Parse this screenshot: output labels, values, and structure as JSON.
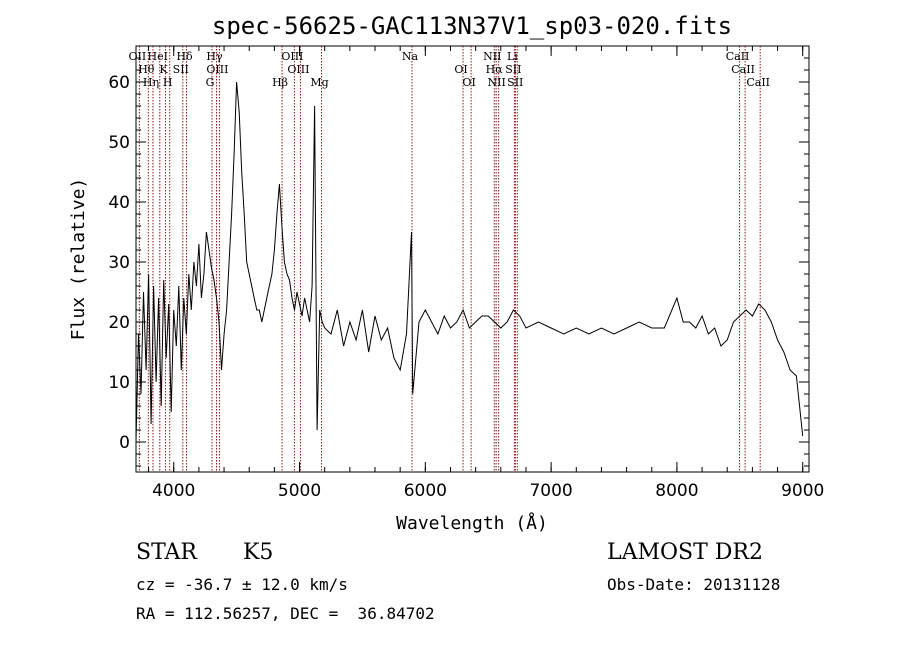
{
  "chart_data": {
    "type": "line",
    "title": "spec-56625-GAC113N37V1_sp03-020.fits",
    "xlabel": "Wavelength (Å)",
    "ylabel": "Flux (relative)",
    "xlim": [
      3700,
      9050
    ],
    "ylim": [
      -5,
      66
    ],
    "xticks": [
      4000,
      5000,
      6000,
      7000,
      8000,
      9000
    ],
    "yticks": [
      0,
      10,
      20,
      30,
      40,
      50,
      60
    ],
    "line_color": "#000000",
    "marker_color": "#8b1a1a",
    "series": [
      {
        "x": [
          3700,
          3720,
          3740,
          3760,
          3780,
          3800,
          3820,
          3840,
          3860,
          3880,
          3900,
          3920,
          3940,
          3960,
          3980,
          4000,
          4020,
          4040,
          4060,
          4080,
          4100,
          4120,
          4140,
          4160,
          4180,
          4200,
          4220,
          4240,
          4260,
          4280,
          4300,
          4320,
          4340,
          4360,
          4380,
          4400,
          4420,
          4440,
          4460,
          4480,
          4500,
          4520,
          4540,
          4560,
          4580,
          4600,
          4620,
          4640,
          4660,
          4680,
          4700,
          4720,
          4740,
          4760,
          4780,
          4800,
          4820,
          4840,
          4860,
          4880,
          4900,
          4920,
          4940,
          4960,
          4980,
          5000,
          5020,
          5040,
          5060,
          5080,
          5100,
          5120,
          5140,
          5160,
          5180,
          5200,
          5250,
          5300,
          5350,
          5400,
          5450,
          5500,
          5550,
          5600,
          5650,
          5700,
          5750,
          5800,
          5850,
          5890,
          5900,
          5950,
          6000,
          6050,
          6100,
          6150,
          6200,
          6250,
          6300,
          6350,
          6400,
          6450,
          6500,
          6550,
          6600,
          6650,
          6700,
          6750,
          6800,
          6900,
          7000,
          7100,
          7200,
          7300,
          7400,
          7500,
          7600,
          7700,
          7800,
          7900,
          8000,
          8050,
          8100,
          8150,
          8200,
          8250,
          8300,
          8350,
          8400,
          8450,
          8500,
          8550,
          8600,
          8650,
          8700,
          8750,
          8800,
          8850,
          8900,
          8950,
          9000
        ],
        "values": [
          0,
          18,
          8,
          25,
          12,
          28,
          3,
          26,
          10,
          24,
          6,
          27,
          14,
          23,
          5,
          22,
          16,
          26,
          12,
          24,
          18,
          28,
          22,
          30,
          26,
          33,
          24,
          28,
          35,
          32,
          29,
          27,
          24,
          20,
          12,
          18,
          22,
          30,
          38,
          48,
          60,
          55,
          45,
          38,
          30,
          28,
          26,
          24,
          22,
          22,
          20,
          22,
          24,
          26,
          28,
          32,
          38,
          43,
          36,
          30,
          28,
          27,
          24,
          22,
          25,
          23,
          21,
          24,
          22,
          20,
          26,
          56,
          2,
          22,
          20,
          19,
          18,
          22,
          16,
          20,
          17,
          22,
          15,
          21,
          17,
          19,
          14,
          12,
          18,
          35,
          8,
          20,
          22,
          20,
          18,
          21,
          19,
          20,
          22,
          19,
          20,
          21,
          21,
          20,
          19,
          20,
          22,
          21,
          19,
          20,
          19,
          18,
          19,
          18,
          19,
          18,
          19,
          20,
          19,
          19,
          24,
          20,
          20,
          19,
          21,
          18,
          19,
          16,
          17,
          20,
          21,
          22,
          21,
          23,
          22,
          20,
          17,
          15,
          12,
          11,
          1
        ]
      }
    ],
    "lines": [
      {
        "label": "OII",
        "wl": 3727
      },
      {
        "label": "Hθ",
        "wl": 3798
      },
      {
        "label": "Hη",
        "wl": 3835
      },
      {
        "label": "HeI",
        "wl": 3889
      },
      {
        "label": "K",
        "wl": 3934
      },
      {
        "label": "H",
        "wl": 3968
      },
      {
        "label": "Hδ",
        "wl": 4102
      },
      {
        "label": "SII",
        "wl": 4072
      },
      {
        "label": "G",
        "wl": 4304
      },
      {
        "label": "Hγ",
        "wl": 4340
      },
      {
        "label": "OIII",
        "wl": 4363
      },
      {
        "label": "Hβ",
        "wl": 4861
      },
      {
        "label": "OIII",
        "wl": 4959
      },
      {
        "label": "OIII",
        "wl": 5007
      },
      {
        "label": "Mg",
        "wl": 5175
      },
      {
        "label": "Na",
        "wl": 5894
      },
      {
        "label": "OI",
        "wl": 6300
      },
      {
        "label": "OI",
        "wl": 6364
      },
      {
        "label": "NII",
        "wl": 6548
      },
      {
        "label": "Hα",
        "wl": 6563
      },
      {
        "label": "NII",
        "wl": 6583
      },
      {
        "label": "Li",
        "wl": 6708
      },
      {
        "label": "SII",
        "wl": 6716
      },
      {
        "label": "SII",
        "wl": 6731
      },
      {
        "label": "CaII",
        "wl": 8498
      },
      {
        "label": "CaII",
        "wl": 8542
      },
      {
        "label": "CaII",
        "wl": 8662
      }
    ]
  },
  "info": {
    "class": "STAR",
    "subclass": "K5",
    "survey": "LAMOST DR2",
    "cz": "cz = -36.7 ± 12.0 km/s",
    "obs_date": "Obs-Date: 20131128",
    "coords": "RA = 112.56257, DEC =  36.84702"
  }
}
